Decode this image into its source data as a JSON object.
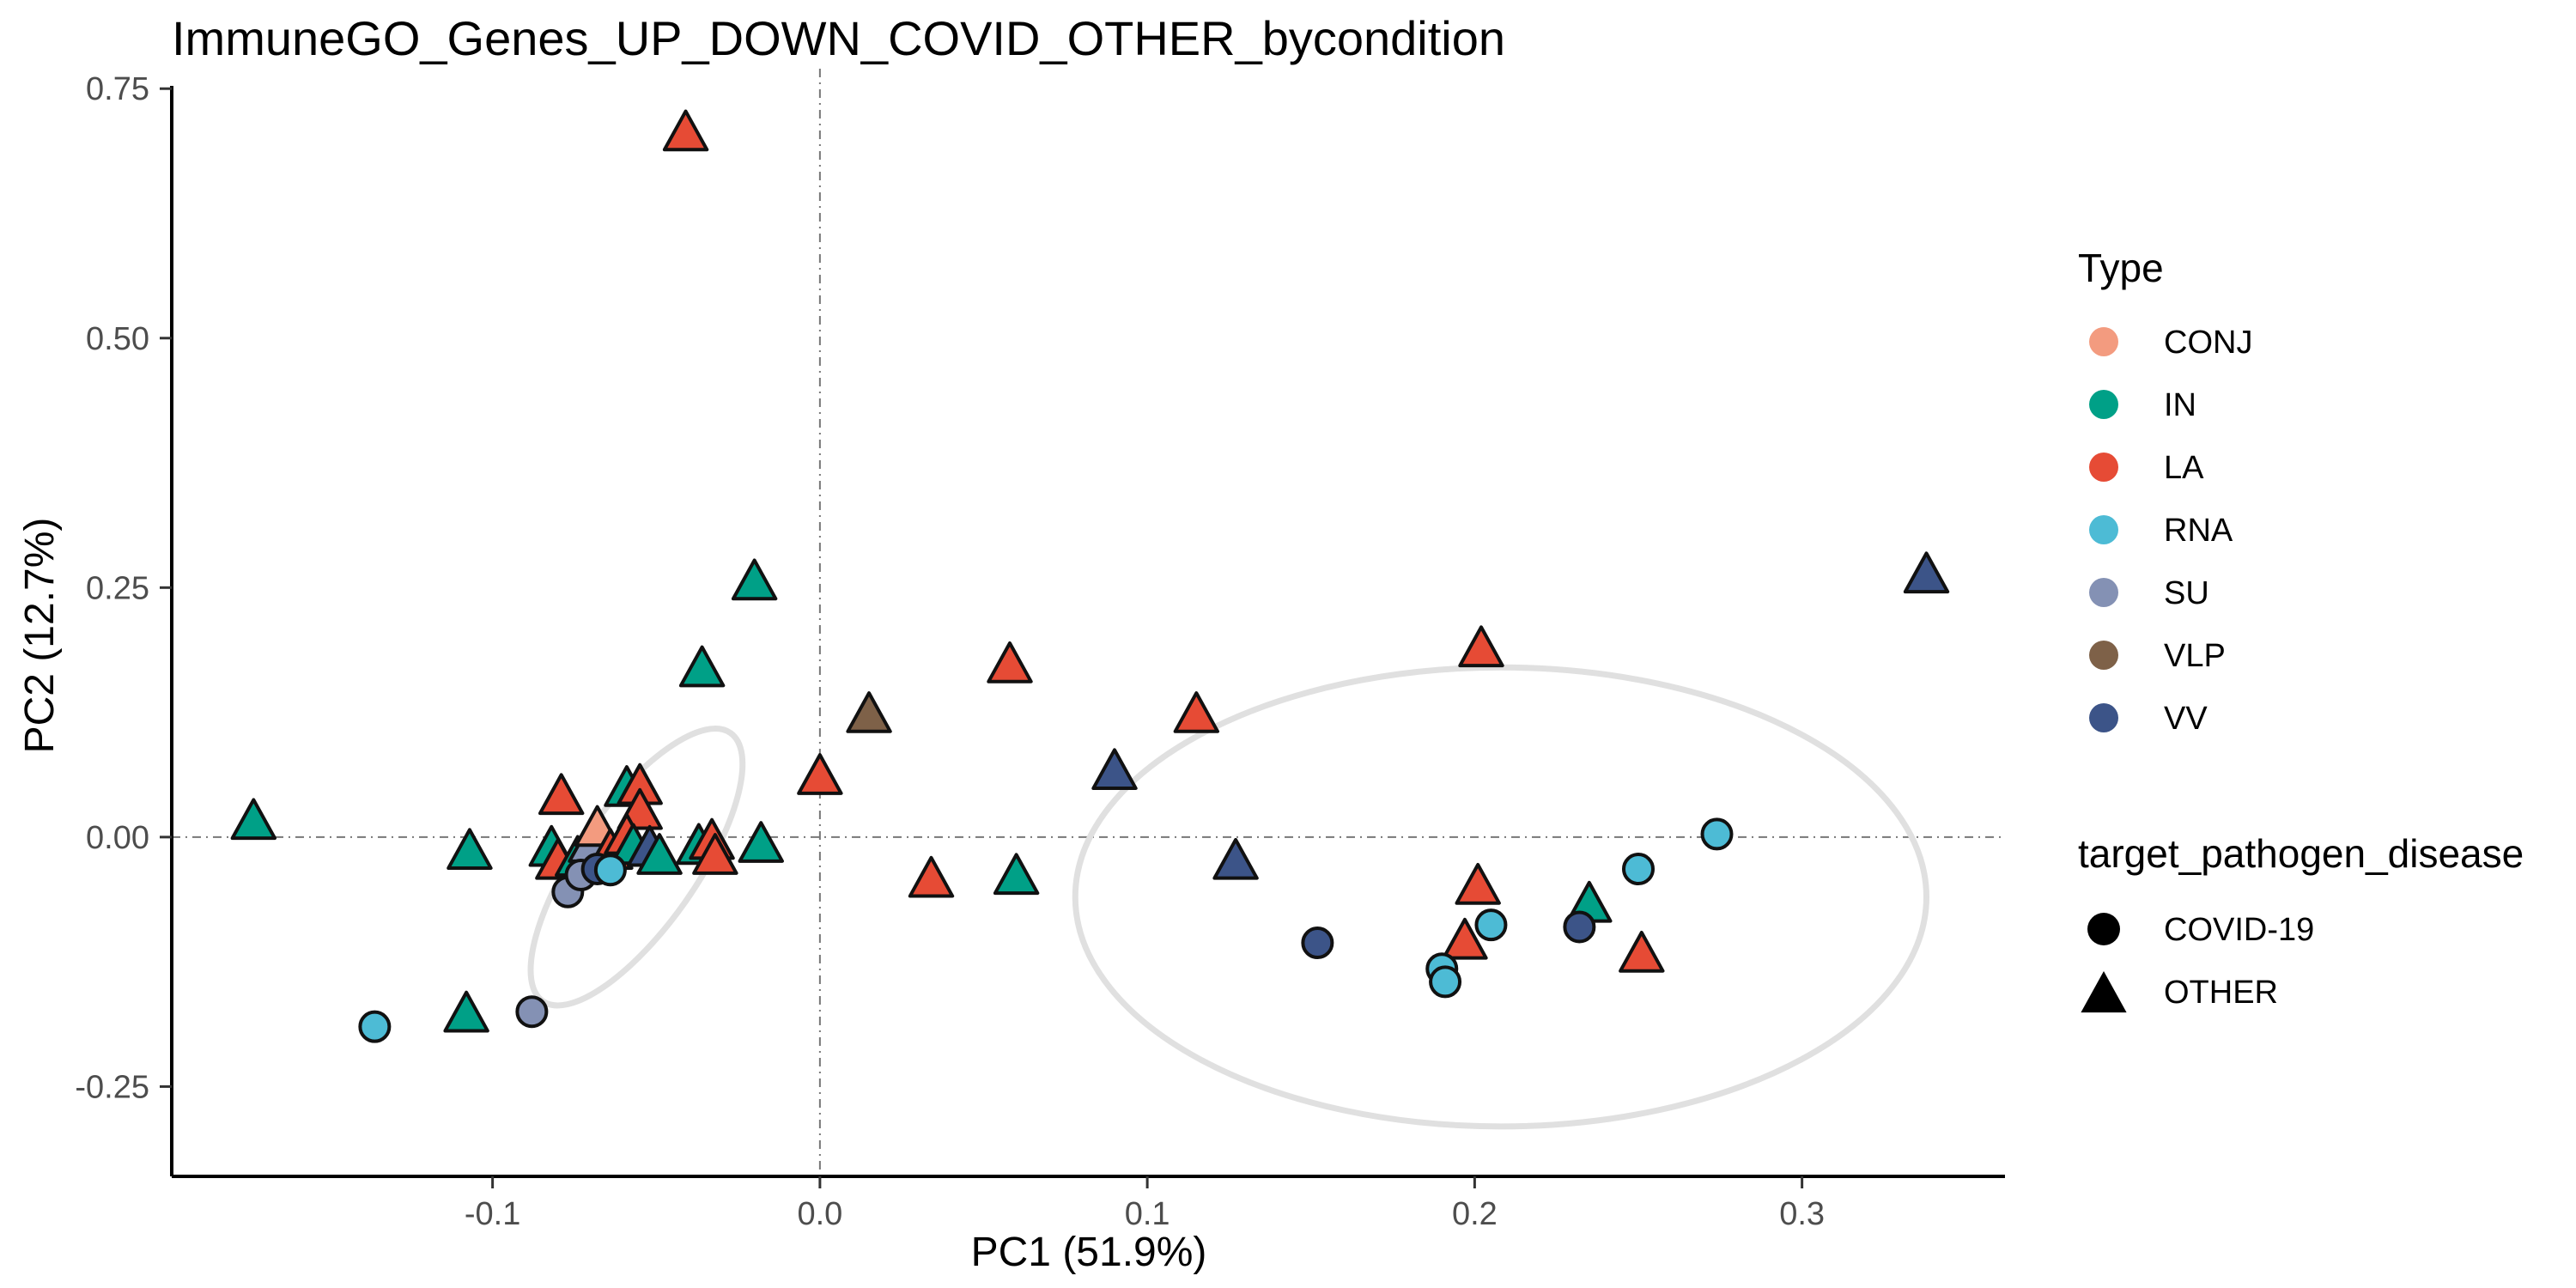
{
  "chart_data": {
    "type": "scatter",
    "title": "ImmuneGO_Genes_UP_DOWN_COVID_OTHER_bycondition",
    "xlabel": "PC1 (51.9%)",
    "ylabel": "PC2 (12.7%)",
    "xlim": [
      -0.198,
      0.362
    ],
    "ylim": [
      -0.34,
      0.77
    ],
    "xticks": [
      -0.1,
      0.0,
      0.1,
      0.2,
      0.3
    ],
    "xtick_labels": [
      "-0.1",
      "0.0",
      "0.1",
      "0.2",
      "0.3"
    ],
    "yticks": [
      -0.25,
      0.0,
      0.25,
      0.5,
      0.75
    ],
    "ytick_labels": [
      "-0.25",
      "0.00",
      "0.25",
      "0.50",
      "0.75"
    ],
    "reference_lines": {
      "x": 0,
      "y": 0,
      "style": "dashdot"
    },
    "grid": false,
    "legend_placement": "right",
    "color_legend": {
      "title": "Type",
      "items": [
        {
          "label": "CONJ",
          "color": "#F39B7F"
        },
        {
          "label": "IN",
          "color": "#00A087"
        },
        {
          "label": "LA",
          "color": "#E64B35"
        },
        {
          "label": "RNA",
          "color": "#4DBBD5"
        },
        {
          "label": "SU",
          "color": "#8491B4"
        },
        {
          "label": "VLP",
          "color": "#7E6148"
        },
        {
          "label": "VV",
          "color": "#3C5488"
        }
      ]
    },
    "shape_legend": {
      "title": "target_pathogen_disease",
      "items": [
        {
          "label": "COVID-19",
          "shape": "circle"
        },
        {
          "label": "OTHER",
          "shape": "triangle"
        }
      ]
    },
    "ellipses": [
      {
        "group": "OTHER",
        "cx": -0.056,
        "cy": -0.03,
        "rx": 0.05,
        "ry": 0.06,
        "angle_deg": 55,
        "color": "#e0e0e0"
      },
      {
        "group": "COVID-19",
        "cx": 0.208,
        "cy": -0.06,
        "rx": 0.13,
        "ry": 0.23,
        "angle_deg": 0,
        "color": "#e0e0e0"
      }
    ],
    "points": [
      {
        "x": -0.041,
        "y": 0.705,
        "type": "LA",
        "shape": "triangle"
      },
      {
        "x": -0.173,
        "y": 0.015,
        "type": "IN",
        "shape": "triangle"
      },
      {
        "x": -0.107,
        "y": -0.015,
        "type": "IN",
        "shape": "triangle"
      },
      {
        "x": -0.108,
        "y": -0.178,
        "type": "IN",
        "shape": "triangle"
      },
      {
        "x": -0.02,
        "y": 0.255,
        "type": "IN",
        "shape": "triangle"
      },
      {
        "x": -0.036,
        "y": 0.168,
        "type": "IN",
        "shape": "triangle"
      },
      {
        "x": -0.0,
        "y": 0.06,
        "type": "LA",
        "shape": "triangle"
      },
      {
        "x": 0.015,
        "y": 0.122,
        "type": "VLP",
        "shape": "triangle"
      },
      {
        "x": 0.058,
        "y": 0.172,
        "type": "LA",
        "shape": "triangle"
      },
      {
        "x": 0.034,
        "y": -0.043,
        "type": "LA",
        "shape": "triangle"
      },
      {
        "x": 0.06,
        "y": -0.04,
        "type": "IN",
        "shape": "triangle"
      },
      {
        "x": 0.09,
        "y": 0.065,
        "type": "VV",
        "shape": "triangle"
      },
      {
        "x": 0.115,
        "y": 0.122,
        "type": "LA",
        "shape": "triangle"
      },
      {
        "x": 0.127,
        "y": -0.025,
        "type": "VV",
        "shape": "triangle"
      },
      {
        "x": 0.202,
        "y": 0.188,
        "type": "LA",
        "shape": "triangle"
      },
      {
        "x": 0.201,
        "y": -0.05,
        "type": "LA",
        "shape": "triangle"
      },
      {
        "x": 0.197,
        "y": -0.105,
        "type": "LA",
        "shape": "triangle"
      },
      {
        "x": 0.235,
        "y": -0.068,
        "type": "IN",
        "shape": "triangle"
      },
      {
        "x": 0.251,
        "y": -0.118,
        "type": "LA",
        "shape": "triangle"
      },
      {
        "x": 0.338,
        "y": 0.262,
        "type": "VV",
        "shape": "triangle"
      },
      {
        "x": -0.079,
        "y": 0.04,
        "type": "LA",
        "shape": "triangle"
      },
      {
        "x": -0.059,
        "y": 0.048,
        "type": "IN",
        "shape": "triangle"
      },
      {
        "x": -0.055,
        "y": 0.05,
        "type": "LA",
        "shape": "triangle"
      },
      {
        "x": -0.055,
        "y": 0.025,
        "type": "LA",
        "shape": "triangle"
      },
      {
        "x": -0.082,
        "y": -0.012,
        "type": "IN",
        "shape": "triangle"
      },
      {
        "x": -0.08,
        "y": -0.025,
        "type": "LA",
        "shape": "triangle"
      },
      {
        "x": -0.074,
        "y": -0.022,
        "type": "IN",
        "shape": "triangle"
      },
      {
        "x": -0.07,
        "y": -0.008,
        "type": "SU",
        "shape": "triangle"
      },
      {
        "x": -0.068,
        "y": 0.008,
        "type": "CONJ",
        "shape": "triangle"
      },
      {
        "x": -0.064,
        "y": -0.015,
        "type": "LA",
        "shape": "triangle"
      },
      {
        "x": -0.059,
        "y": 0.0,
        "type": "LA",
        "shape": "triangle"
      },
      {
        "x": -0.057,
        "y": -0.01,
        "type": "IN",
        "shape": "triangle"
      },
      {
        "x": -0.052,
        "y": -0.012,
        "type": "VV",
        "shape": "triangle"
      },
      {
        "x": -0.049,
        "y": -0.02,
        "type": "IN",
        "shape": "triangle"
      },
      {
        "x": -0.037,
        "y": -0.01,
        "type": "IN",
        "shape": "triangle"
      },
      {
        "x": -0.033,
        "y": -0.005,
        "type": "LA",
        "shape": "triangle"
      },
      {
        "x": -0.032,
        "y": -0.02,
        "type": "LA",
        "shape": "triangle"
      },
      {
        "x": -0.018,
        "y": -0.008,
        "type": "IN",
        "shape": "triangle"
      },
      {
        "x": -0.077,
        "y": -0.055,
        "type": "SU",
        "shape": "circle"
      },
      {
        "x": -0.073,
        "y": -0.038,
        "type": "SU",
        "shape": "circle"
      },
      {
        "x": -0.068,
        "y": -0.032,
        "type": "VV",
        "shape": "circle"
      },
      {
        "x": -0.064,
        "y": -0.033,
        "type": "RNA",
        "shape": "circle"
      },
      {
        "x": -0.136,
        "y": -0.19,
        "type": "RNA",
        "shape": "circle"
      },
      {
        "x": -0.088,
        "y": -0.175,
        "type": "SU",
        "shape": "circle"
      },
      {
        "x": 0.152,
        "y": -0.106,
        "type": "VV",
        "shape": "circle"
      },
      {
        "x": 0.19,
        "y": -0.132,
        "type": "RNA",
        "shape": "circle"
      },
      {
        "x": 0.191,
        "y": -0.145,
        "type": "RNA",
        "shape": "circle"
      },
      {
        "x": 0.205,
        "y": -0.088,
        "type": "RNA",
        "shape": "circle"
      },
      {
        "x": 0.232,
        "y": -0.09,
        "type": "VV",
        "shape": "circle"
      },
      {
        "x": 0.25,
        "y": -0.032,
        "type": "RNA",
        "shape": "circle"
      },
      {
        "x": 0.274,
        "y": 0.003,
        "type": "RNA",
        "shape": "circle"
      }
    ]
  }
}
